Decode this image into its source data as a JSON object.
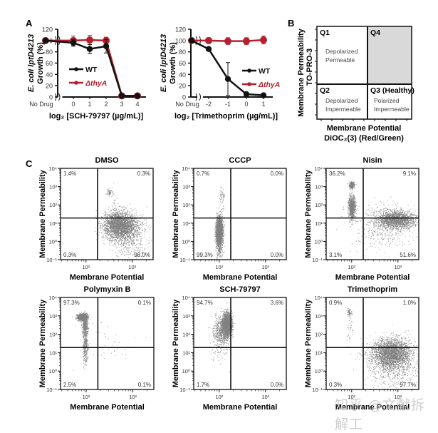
{
  "panel_labels": {
    "a": "A",
    "b": "B",
    "c": "C"
  },
  "watermark": "知乎 @文献拆解工",
  "colors": {
    "wt": "#111111",
    "thyA": "#b5202e",
    "q4_fill": "#d9d9d9"
  },
  "chart_data": [
    {
      "id": "A1",
      "type": "line",
      "ylabel_line1": "E. coli lptD4213",
      "ylabel_line2": "Growth (%)",
      "xlabel": "log₂ [SCH-79797 (µg/mL)]",
      "x_ticks": [
        "No Drug",
        "0",
        "1",
        "2",
        "3",
        "4"
      ],
      "y_ticks": [
        0,
        20,
        40,
        60,
        80,
        100,
        120
      ],
      "ylim": [
        0,
        120
      ],
      "axis_break": true,
      "legend": {
        "placement": "center-left",
        "entries": [
          "WT",
          "ΔthyA"
        ]
      },
      "series": [
        {
          "name": "WT",
          "values": [
            100,
            96,
            85,
            90,
            2,
            2
          ],
          "errors": [
            0,
            6,
            8,
            12,
            1,
            1
          ]
        },
        {
          "name": "ΔthyA",
          "values": [
            100,
            100,
            101,
            100,
            2,
            2
          ],
          "errors": [
            0,
            8,
            8,
            6,
            1,
            1
          ]
        }
      ]
    },
    {
      "id": "A2",
      "type": "line",
      "ylabel_line1": "E. coli lptD4213",
      "ylabel_line2": "Growth (%)",
      "xlabel": "log₂ [Trimethoprim (µg/mL)]",
      "x_ticks": [
        "No Drug",
        "-2",
        "-1",
        "0",
        "1"
      ],
      "y_ticks": [
        0,
        20,
        40,
        60,
        80,
        100,
        120
      ],
      "ylim": [
        0,
        120
      ],
      "axis_break": true,
      "legend": {
        "placement": "center-right",
        "entries": [
          "WT",
          "ΔthyA"
        ]
      },
      "series": [
        {
          "name": "WT",
          "values": [
            100,
            85,
            32,
            5,
            3
          ],
          "errors": [
            0,
            2,
            29,
            2,
            1
          ]
        },
        {
          "name": "ΔthyA",
          "values": [
            100,
            100,
            99,
            99,
            101
          ],
          "errors": [
            0,
            5,
            6,
            6,
            7
          ]
        }
      ]
    },
    {
      "id": "B",
      "type": "diagram",
      "ylabel_line1": "Membrane Permeability",
      "ylabel_line2": "TO-PRO-3",
      "xlabel_line1": "Membrane Potential",
      "xlabel_line2": "DiOC₂(3) (Red/Green)",
      "quadrants": [
        {
          "id": "Q1",
          "title": "Q1",
          "line1": "Depolarized",
          "line2": "Permeable",
          "shaded": false
        },
        {
          "id": "Q4",
          "title": "Q4",
          "line1": "",
          "line2": "",
          "shaded": true
        },
        {
          "id": "Q2",
          "title": "Q2",
          "line1": "Depolarized",
          "line2": "Impermeable",
          "shaded": false
        },
        {
          "id": "Q3",
          "title": "Q3 (Healthy)",
          "line1": "Polarized",
          "line2": "Impermeable",
          "shaded": false
        }
      ]
    },
    {
      "id": "C",
      "type": "scatter",
      "xlabel": "Membrane Potential",
      "ylabel": "Membrane Permeability",
      "y_ticks": [
        "10⁻¹",
        "10⁰",
        "10¹",
        "10²",
        "10³",
        "10⁴"
      ],
      "x_ticks": [
        "10²",
        "10³"
      ],
      "plots": [
        {
          "title": "DMSO",
          "q_tl": "1.4%",
          "q_tr": "0.3%",
          "q_bl": "0.3%",
          "q_br": "98.0%",
          "clusters": [
            {
              "x": 2.5,
              "y": 2.7,
              "sx": 0.03,
              "sy": 0.1,
              "n": 60,
              "dens": 0.6
            },
            {
              "x": 2.6,
              "y": 2.1,
              "sx": 0.03,
              "sy": 0.5,
              "n": 40,
              "dens": 0.25
            },
            {
              "x": 2.72,
              "y": 0.9,
              "sx": 0.18,
              "sy": 0.35,
              "n": 2600,
              "dens": 0.9
            },
            {
              "x": 2.9,
              "y": 0.3,
              "sx": 0.2,
              "sy": 0.6,
              "n": 600,
              "dens": 0.4
            }
          ]
        },
        {
          "title": "CCCP",
          "q_tl": "0.7%",
          "q_tr": "0.0%",
          "q_bl": "99.3%",
          "q_br": "0.0%",
          "clusters": [
            {
              "x": 2.0,
              "y": 0.6,
              "sx": 0.035,
              "sy": 0.35,
              "n": 2200,
              "dens": 0.95
            },
            {
              "x": 2.0,
              "y": 0.0,
              "sx": 0.04,
              "sy": 0.5,
              "n": 400,
              "dens": 0.5
            },
            {
              "x": 2.05,
              "y": 2.6,
              "sx": 0.03,
              "sy": 0.15,
              "n": 40,
              "dens": 0.35
            },
            {
              "x": 2.05,
              "y": 2.0,
              "sx": 0.03,
              "sy": 0.5,
              "n": 30,
              "dens": 0.25
            }
          ]
        },
        {
          "title": "Nisin",
          "q_tl": "36.2%",
          "q_tr": "9.1%",
          "q_bl": "3.1%",
          "q_br": "51.6%",
          "clusters": [
            {
              "x": 2.0,
              "y": 3.1,
              "sx": 0.03,
              "sy": 0.1,
              "n": 250,
              "dens": 0.9
            },
            {
              "x": 2.0,
              "y": 1.9,
              "sx": 0.035,
              "sy": 0.3,
              "n": 900,
              "dens": 0.9
            },
            {
              "x": 2.95,
              "y": 1.2,
              "sx": 0.2,
              "sy": 0.22,
              "n": 1800,
              "dens": 0.9
            },
            {
              "x": 2.7,
              "y": 0.9,
              "sx": 0.35,
              "sy": 0.6,
              "n": 500,
              "dens": 0.4
            }
          ]
        },
        {
          "title": "Polymyxin B",
          "q_tl": "97.3%",
          "q_tr": "0.1%",
          "q_bl": "2.5%",
          "q_br": "0.1%",
          "clusters": [
            {
              "x": 1.92,
              "y": 2.95,
              "sx": 0.05,
              "sy": 0.08,
              "n": 1500,
              "dens": 0.95
            },
            {
              "x": 1.97,
              "y": 2.5,
              "sx": 0.03,
              "sy": 0.25,
              "n": 400,
              "dens": 0.8
            },
            {
              "x": 1.98,
              "y": 1.4,
              "sx": 0.025,
              "sy": 0.5,
              "n": 350,
              "dens": 0.5
            },
            {
              "x": 2.4,
              "y": 1.6,
              "sx": 0.3,
              "sy": 0.6,
              "n": 40,
              "dens": 0.25
            }
          ]
        },
        {
          "title": "SCH-79797",
          "q_tl": "94.7%",
          "q_tr": "3.6%",
          "q_bl": "1.7%",
          "q_br": "0.0%",
          "clusters": [
            {
              "x": 2.17,
              "y": 2.55,
              "sx": 0.05,
              "sy": 0.3,
              "n": 2200,
              "dens": 0.95
            },
            {
              "x": 2.05,
              "y": 2.2,
              "sx": 0.09,
              "sy": 0.4,
              "n": 600,
              "dens": 0.45
            },
            {
              "x": 2.0,
              "y": 1.3,
              "sx": 0.1,
              "sy": 0.4,
              "n": 80,
              "dens": 0.3
            }
          ]
        },
        {
          "title": "Trimethoprim",
          "q_tl": "0.9%",
          "q_tr": "1.0%",
          "q_bl": "0.3%",
          "q_br": "97.7%",
          "clusters": [
            {
              "x": 1.95,
              "y": 3.2,
              "sx": 0.03,
              "sy": 0.1,
              "n": 60,
              "dens": 0.5
            },
            {
              "x": 1.95,
              "y": 2.3,
              "sx": 0.03,
              "sy": 0.5,
              "n": 40,
              "dens": 0.25
            },
            {
              "x": 2.85,
              "y": 1.0,
              "sx": 0.22,
              "sy": 0.4,
              "n": 2600,
              "dens": 0.9
            },
            {
              "x": 2.9,
              "y": 0.3,
              "sx": 0.25,
              "sy": 0.6,
              "n": 700,
              "dens": 0.45
            }
          ]
        }
      ]
    }
  ]
}
